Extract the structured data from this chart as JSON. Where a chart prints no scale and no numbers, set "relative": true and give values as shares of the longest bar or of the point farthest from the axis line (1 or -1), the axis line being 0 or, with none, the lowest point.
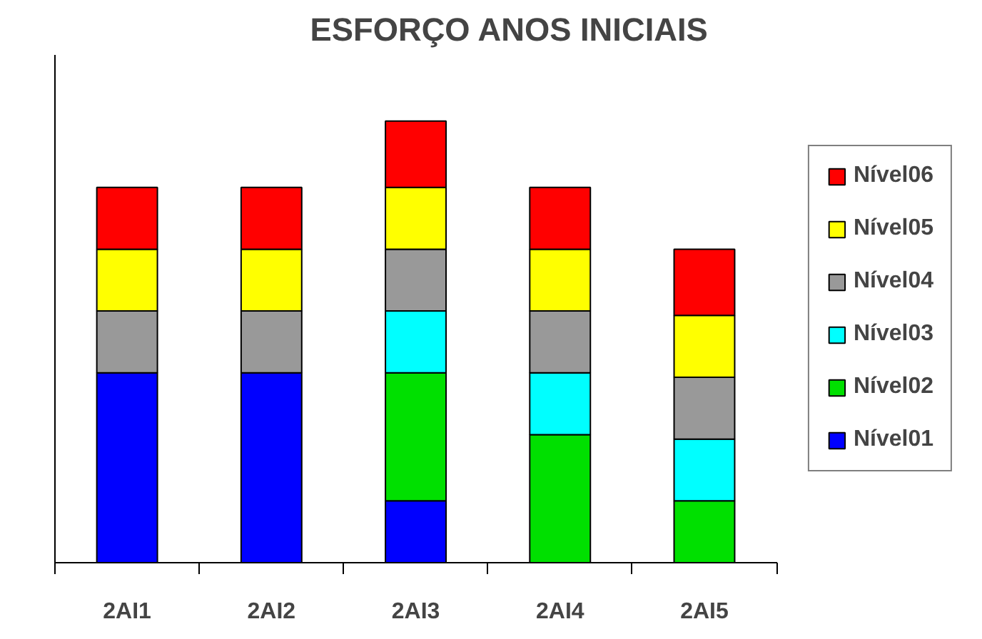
{
  "chart_data": {
    "type": "bar",
    "title": "ESFORÇO ANOS INICIAIS",
    "categories": [
      "2AI1",
      "2AI2",
      "2AI3",
      "2AI4",
      "2AI5"
    ],
    "stacked": true,
    "relative": true,
    "legend": "right",
    "grid": false,
    "series": [
      {
        "name": "Nível01",
        "color": "#0000ff",
        "values": [
          0.43,
          0.43,
          0.14,
          null,
          null
        ]
      },
      {
        "name": "Nível02",
        "color": "#00e000",
        "values": [
          null,
          null,
          0.29,
          0.29,
          0.14
        ]
      },
      {
        "name": "Nível03",
        "color": "#00ffff",
        "values": [
          null,
          null,
          0.14,
          0.14,
          0.14
        ]
      },
      {
        "name": "Nível04",
        "color": "#999999",
        "values": [
          0.14,
          0.14,
          0.14,
          0.14,
          0.14
        ]
      },
      {
        "name": "Nível05",
        "color": "#ffff00",
        "values": [
          0.14,
          0.14,
          0.14,
          0.14,
          0.14
        ]
      },
      {
        "name": "Nível06",
        "color": "#ff0000",
        "values": [
          0.14,
          0.14,
          0.15,
          0.14,
          0.15
        ]
      }
    ]
  }
}
